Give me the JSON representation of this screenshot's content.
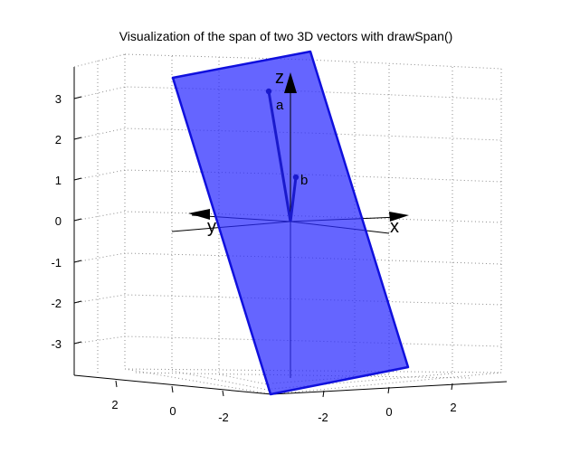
{
  "chart_data": {
    "type": "3d-vector-span",
    "title": "Visualization of the span of two 3D vectors with drawSpan()",
    "z_ticks": [
      "3",
      "2",
      "1",
      "0",
      "-1",
      "-2",
      "-3"
    ],
    "y_ticks": [
      "2",
      "0",
      "-2"
    ],
    "x_ticks": [
      "-2",
      "0",
      "2"
    ],
    "axis_labels": {
      "x": "x",
      "y": "y",
      "z": "z"
    },
    "vectors": [
      {
        "name": "a",
        "color": "#1a1acc"
      },
      {
        "name": "b",
        "color": "#1a1acc"
      }
    ],
    "span_plane": {
      "fill": "#5a5aff",
      "edge": "#1010dd"
    },
    "grid": true
  }
}
